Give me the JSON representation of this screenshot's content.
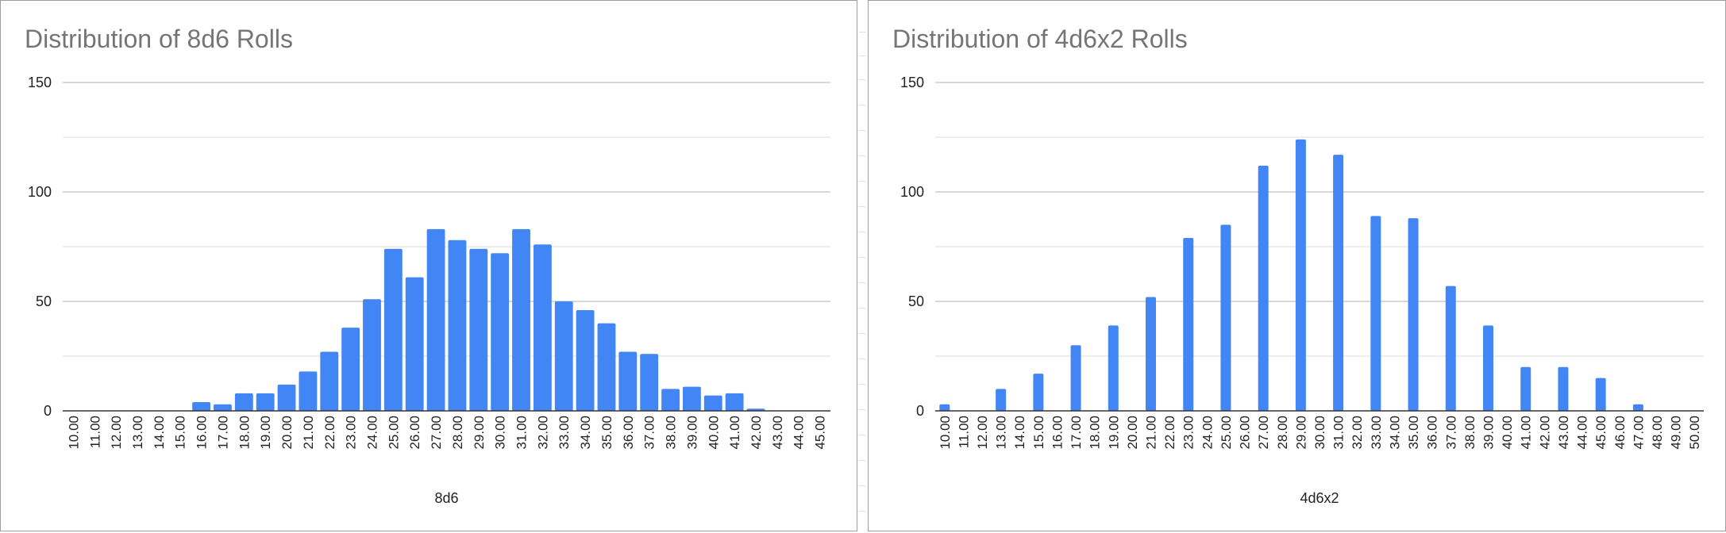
{
  "chart_data": [
    {
      "type": "bar",
      "title": "Distribution of 8d6 Rolls",
      "xlabel": "8d6",
      "ylabel": "",
      "ylim": [
        0,
        150
      ],
      "yticks": [
        "0",
        "50",
        "100",
        "150"
      ],
      "grid": true,
      "legend": "none",
      "color": "#4285f4",
      "categories": [
        "10.00",
        "11.00",
        "12.00",
        "13.00",
        "14.00",
        "15.00",
        "16.00",
        "17.00",
        "18.00",
        "19.00",
        "20.00",
        "21.00",
        "22.00",
        "23.00",
        "24.00",
        "25.00",
        "26.00",
        "27.00",
        "28.00",
        "29.00",
        "30.00",
        "31.00",
        "32.00",
        "33.00",
        "34.00",
        "35.00",
        "36.00",
        "37.00",
        "38.00",
        "39.00",
        "40.00",
        "41.00",
        "42.00",
        "43.00",
        "44.00",
        "45.00"
      ],
      "values": [
        0,
        0,
        0,
        0,
        0,
        0,
        4,
        3,
        8,
        8,
        12,
        18,
        27,
        38,
        51,
        74,
        61,
        83,
        78,
        74,
        72,
        83,
        76,
        50,
        46,
        40,
        27,
        26,
        10,
        11,
        7,
        8,
        1,
        0,
        0,
        0
      ]
    },
    {
      "type": "bar",
      "title": "Distribution of 4d6x2 Rolls",
      "xlabel": "4d6x2",
      "ylabel": "",
      "ylim": [
        0,
        150
      ],
      "yticks": [
        "0",
        "50",
        "100",
        "150"
      ],
      "grid": true,
      "legend": "none",
      "color": "#4285f4",
      "categories": [
        "10.00",
        "11.00",
        "12.00",
        "13.00",
        "14.00",
        "15.00",
        "16.00",
        "17.00",
        "18.00",
        "19.00",
        "20.00",
        "21.00",
        "22.00",
        "23.00",
        "24.00",
        "25.00",
        "26.00",
        "27.00",
        "28.00",
        "29.00",
        "30.00",
        "31.00",
        "32.00",
        "33.00",
        "34.00",
        "35.00",
        "36.00",
        "37.00",
        "38.00",
        "39.00",
        "40.00",
        "41.00",
        "42.00",
        "43.00",
        "44.00",
        "45.00",
        "46.00",
        "47.00",
        "48.00",
        "49.00",
        "50.00"
      ],
      "values": [
        3,
        0,
        0,
        10,
        0,
        17,
        0,
        30,
        0,
        39,
        0,
        52,
        0,
        79,
        0,
        85,
        0,
        112,
        0,
        124,
        0,
        117,
        0,
        89,
        0,
        88,
        0,
        57,
        0,
        39,
        0,
        20,
        0,
        20,
        0,
        15,
        0,
        3,
        0,
        0,
        0
      ]
    }
  ]
}
